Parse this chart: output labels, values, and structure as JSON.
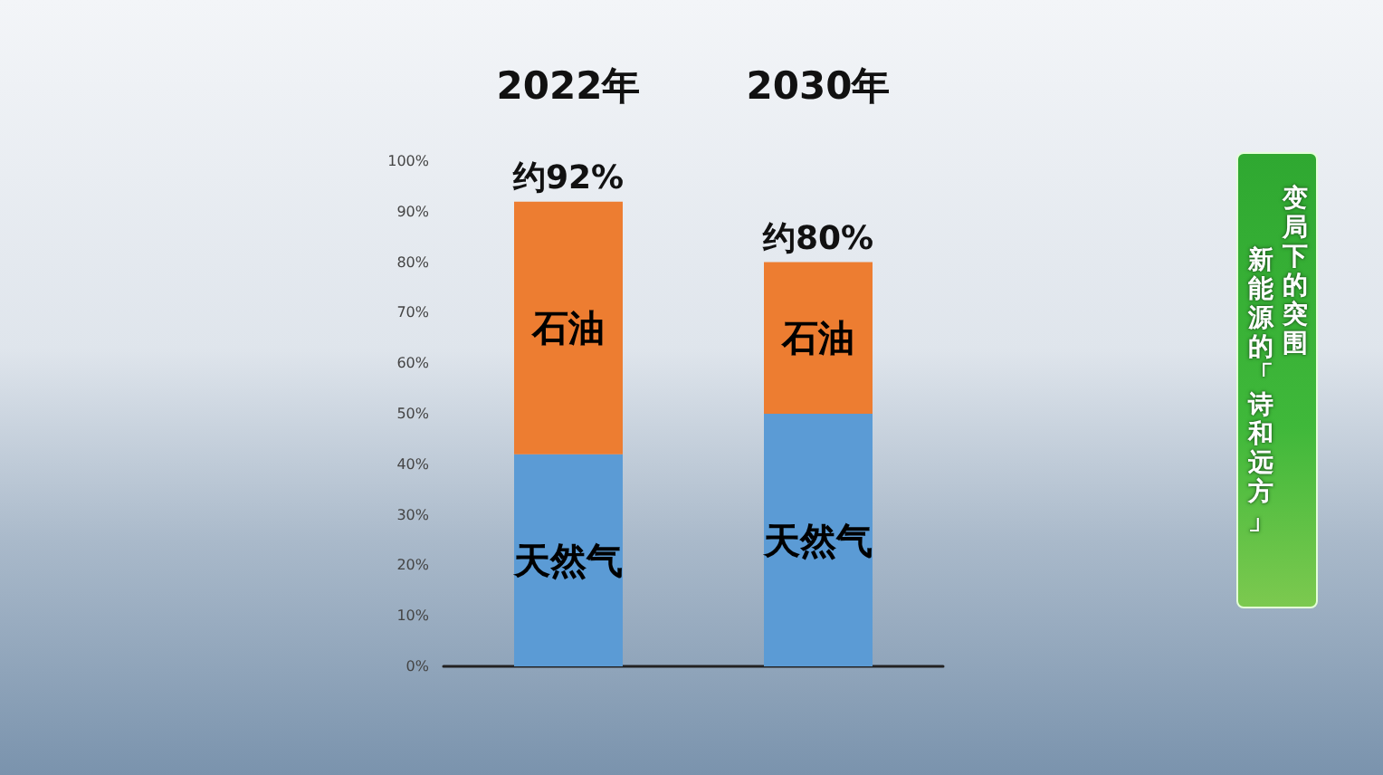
{
  "chart_data": {
    "type": "bar",
    "stacked": true,
    "categories": [
      "2022年",
      "2030年"
    ],
    "series": [
      {
        "name": "天然气",
        "color": "#5b9bd5",
        "values": [
          42,
          50
        ]
      },
      {
        "name": "石油",
        "color": "#ed7d31",
        "values": [
          50,
          30
        ]
      }
    ],
    "ylim": [
      0,
      100
    ],
    "yticks": [
      {
        "value": 0,
        "label": "0%"
      },
      {
        "value": 10,
        "label": "10%"
      },
      {
        "value": 20,
        "label": "20%"
      },
      {
        "value": 30,
        "label": "30%"
      },
      {
        "value": 40,
        "label": "40%"
      },
      {
        "value": 50,
        "label": "50%"
      },
      {
        "value": 60,
        "label": "60%"
      },
      {
        "value": 70,
        "label": "70%"
      },
      {
        "value": 80,
        "label": "80%"
      },
      {
        "value": 90,
        "label": "90%"
      },
      {
        "value": 100,
        "label": "100%"
      }
    ],
    "totals": [
      "约92%",
      "约80%"
    ],
    "annotations": [
      "变局下的突围",
      "新能源的「诗和远方」"
    ]
  }
}
